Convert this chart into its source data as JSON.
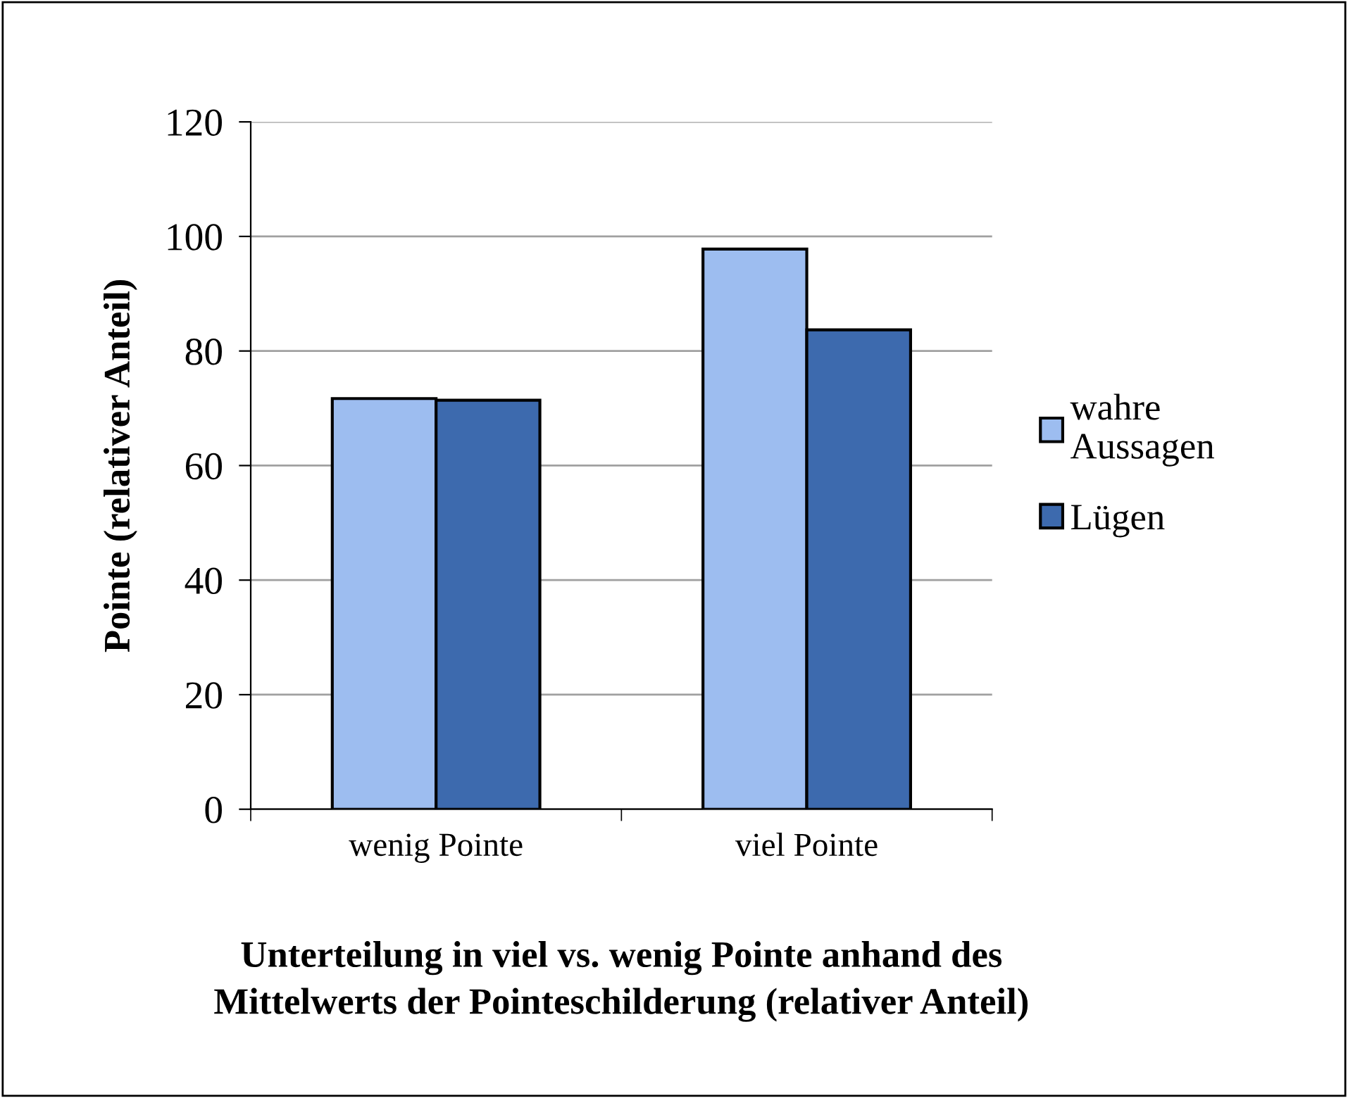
{
  "chart_data": {
    "type": "bar",
    "xlabel": "Unterteilung in viel vs. wenig Pointe anhand des\nMittelwerts der Pointeschilderung (relativer Anteil)",
    "ylabel": "Pointe (relativer Anteil)",
    "categories": [
      "wenig Pointe",
      "viel Pointe"
    ],
    "series": [
      {
        "name": "wahre\nAussagen",
        "color": "#9dbdf0",
        "values": [
          71.7,
          97.8
        ]
      },
      {
        "name": "Lügen",
        "color": "#3d6aae",
        "values": [
          71.4,
          83.7
        ]
      }
    ],
    "ylim": [
      0,
      120
    ],
    "yticks": [
      0,
      20,
      40,
      60,
      80,
      100,
      120
    ],
    "grid": "y",
    "legend": "right"
  }
}
